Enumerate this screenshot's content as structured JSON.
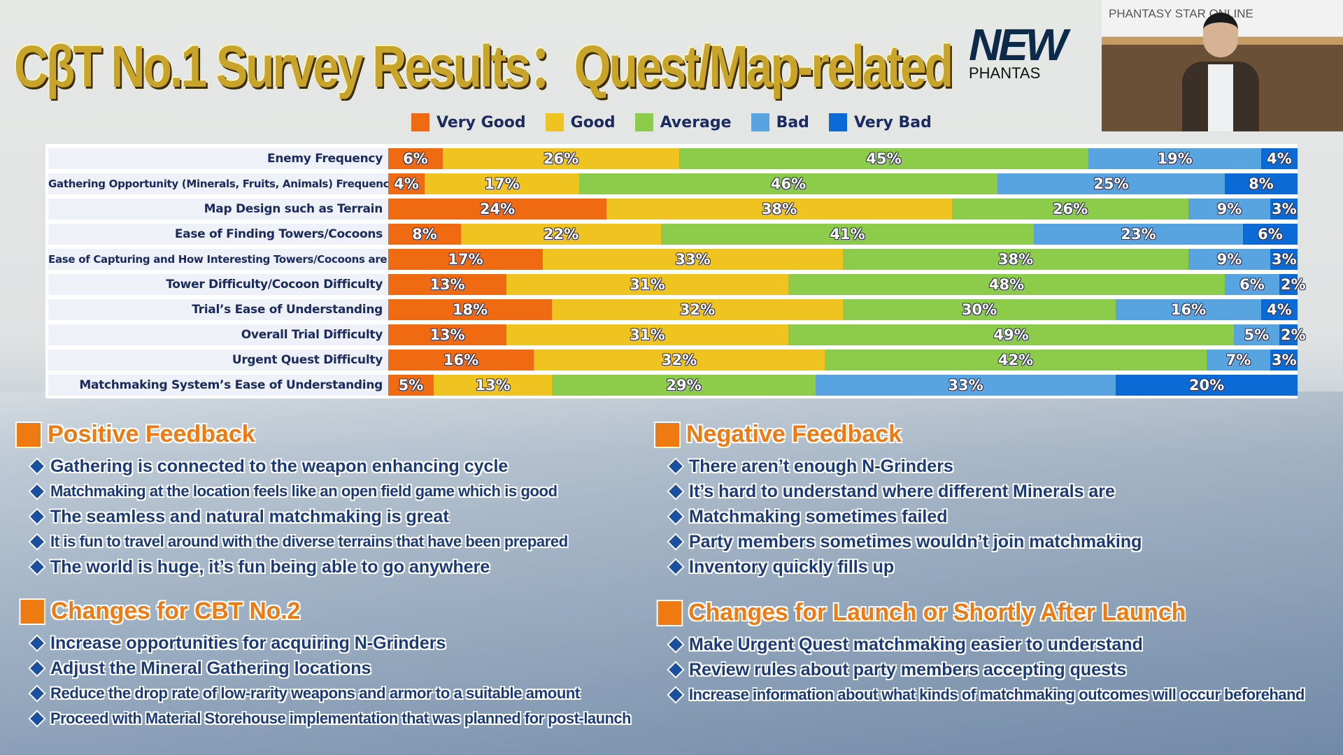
{
  "header": {
    "title": "CβT No.1 Survey Results：Quest/Map-related",
    "logo_text": "NEW",
    "logo_sub": "PHANTAS",
    "video_banner": "PHANTASY STAR ONLINE"
  },
  "colors": {
    "very_good": "#f06a12",
    "good": "#f0c420",
    "average": "#8ccc4a",
    "bad": "#58a4e0",
    "very_bad": "#0a6ad6"
  },
  "chart_data": {
    "type": "bar",
    "orientation": "horizontal-stacked",
    "title": "CβT No.1 Survey Results：Quest/Map-related",
    "legend": [
      "Very Good",
      "Good",
      "Average",
      "Bad",
      "Very Bad"
    ],
    "legend_position": "top",
    "categories": [
      "Enemy Frequency",
      "Gathering Opportunity (Minerals, Fruits, Animals) Frequency",
      "Map Design such as Terrain",
      "Ease of Finding Towers/Cocoons",
      "Ease of Capturing and How Interesting Towers/Cocoons are",
      "Tower Difficulty/Cocoon Difficulty",
      "Trial’s Ease of Understanding",
      "Overall Trial Difficulty",
      "Urgent Quest Difficulty",
      "Matchmaking System’s Ease of Understanding"
    ],
    "series": [
      {
        "name": "Very Good",
        "values": [
          6,
          4,
          24,
          8,
          17,
          13,
          18,
          13,
          16,
          5
        ]
      },
      {
        "name": "Good",
        "values": [
          26,
          17,
          38,
          22,
          33,
          31,
          32,
          31,
          32,
          13
        ]
      },
      {
        "name": "Average",
        "values": [
          45,
          46,
          26,
          41,
          38,
          48,
          30,
          49,
          42,
          29
        ]
      },
      {
        "name": "Bad",
        "values": [
          19,
          25,
          9,
          23,
          9,
          6,
          16,
          5,
          7,
          33
        ]
      },
      {
        "name": "Very Bad",
        "values": [
          4,
          8,
          3,
          6,
          3,
          2,
          4,
          2,
          3,
          20
        ]
      }
    ],
    "unit": "%",
    "xlim": [
      0,
      100
    ]
  },
  "sections": [
    {
      "title": "Positive Feedback",
      "items": [
        "Gathering is connected to the weapon enhancing cycle",
        "Matchmaking at the location feels like an open field game which is good",
        "The seamless and natural matchmaking is great",
        "It is fun to travel around with the diverse terrains that have been prepared",
        "The world is huge, it’s fun being able to go anywhere"
      ]
    },
    {
      "title": "Negative Feedback",
      "items": [
        "There aren’t enough N-Grinders",
        "It’s hard to understand where different Minerals are",
        "Matchmaking sometimes failed",
        "Party members sometimes wouldn’t join matchmaking",
        "Inventory quickly fills up"
      ]
    },
    {
      "title": "Changes for CBT No.2",
      "items": [
        "Increase opportunities for acquiring N-Grinders",
        "Adjust the Mineral Gathering locations",
        "Reduce the drop rate of low-rarity weapons and armor to a suitable amount",
        "Proceed with Material Storehouse implementation that was planned for post-launch"
      ]
    },
    {
      "title": "Changes for Launch or Shortly After Launch",
      "items": [
        "Make Urgent Quest matchmaking easier to understand",
        "Review rules about party members accepting quests",
        "Increase information about what kinds of matchmaking outcomes will occur beforehand"
      ]
    }
  ]
}
